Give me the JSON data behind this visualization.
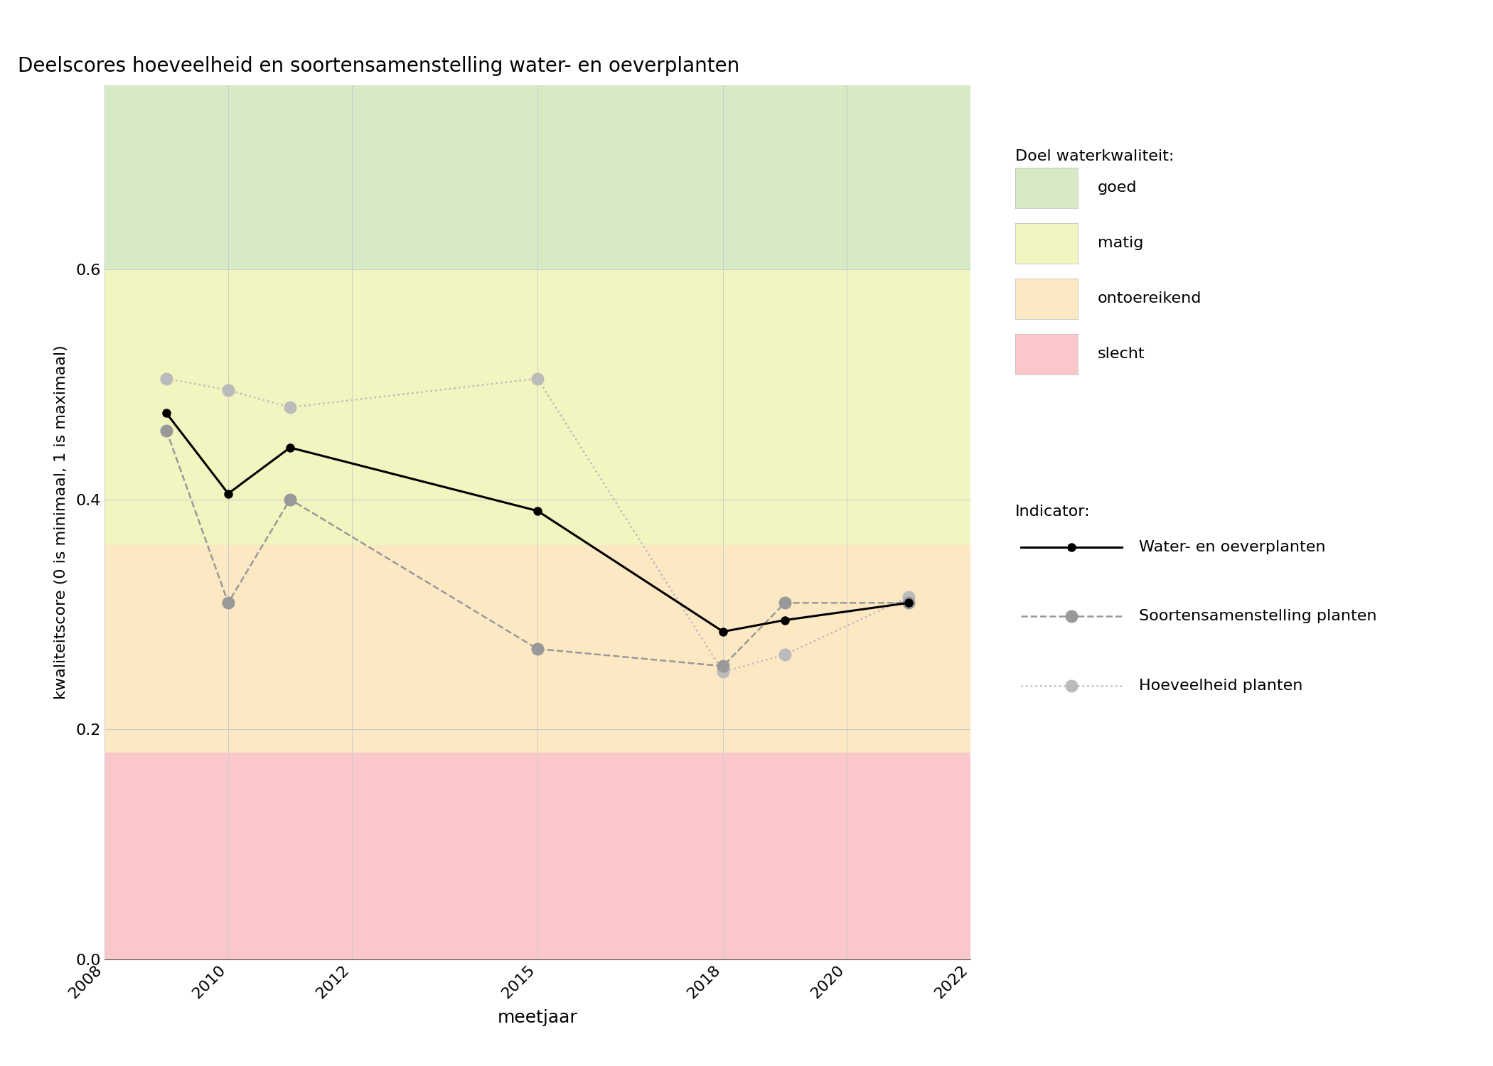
{
  "title": "Deelscores hoeveelheid en soortensamenstelling water- en oeverplanten",
  "xlabel": "meetjaar",
  "ylabel": "kwaliteitscore (0 is minimaal, 1 is maximaal)",
  "xlim": [
    2008,
    2022
  ],
  "ylim": [
    0.0,
    0.76
  ],
  "yticks": [
    0.0,
    0.2,
    0.4,
    0.6
  ],
  "xticks": [
    2008,
    2010,
    2012,
    2015,
    2018,
    2020,
    2022
  ],
  "bg_zones": [
    {
      "label": "goed",
      "color": "#d5eac5",
      "ymin": 0.6,
      "ymax": 0.76
    },
    {
      "label": "matig",
      "color": "#f2f5c0",
      "ymin": 0.36,
      "ymax": 0.6
    },
    {
      "label": "ontoereikend",
      "color": "#fde8c4",
      "ymin": 0.18,
      "ymax": 0.36
    },
    {
      "label": "slecht",
      "color": "#fac8ca",
      "ymin": 0.0,
      "ymax": 0.18
    }
  ],
  "water_oever": {
    "years": [
      2009,
      2010,
      2011,
      2015,
      2018,
      2019,
      2021
    ],
    "values": [
      0.475,
      0.405,
      0.445,
      0.39,
      0.285,
      0.295,
      0.31
    ],
    "color": "#000000",
    "linestyle": "solid",
    "linewidth": 2.2,
    "marker": "o",
    "markersize": 8,
    "label": "Water- en oeverplanten"
  },
  "soortensamenstelling": {
    "years": [
      2009,
      2010,
      2011,
      2015,
      2018,
      2019,
      2021
    ],
    "values": [
      0.46,
      0.31,
      0.4,
      0.27,
      0.255,
      0.31,
      0.31
    ],
    "color": "#999999",
    "linestyle": "dashed",
    "linewidth": 1.8,
    "marker": "o",
    "markersize": 12,
    "label": "Soortensamenstelling planten"
  },
  "hoeveelheid": {
    "years": [
      2009,
      2010,
      2011,
      2015,
      2018,
      2019,
      2021
    ],
    "values": [
      0.505,
      0.495,
      0.48,
      0.505,
      0.25,
      0.265,
      0.315
    ],
    "color": "#bbbbbb",
    "linestyle": "dotted",
    "linewidth": 1.8,
    "marker": "o",
    "markersize": 12,
    "label": "Hoeveelheid planten"
  },
  "legend_quality_title": "Doel waterkwaliteit:",
  "legend_quality_items": [
    {
      "label": "goed",
      "color": "#d5eac5"
    },
    {
      "label": "matig",
      "color": "#f2f5c0"
    },
    {
      "label": "ontoereikend",
      "color": "#fde8c4"
    },
    {
      "label": "slecht",
      "color": "#fac8ca"
    }
  ],
  "legend_indicator_title": "Indicator:",
  "background_color": "#ffffff",
  "grid_color": "#cccccc"
}
